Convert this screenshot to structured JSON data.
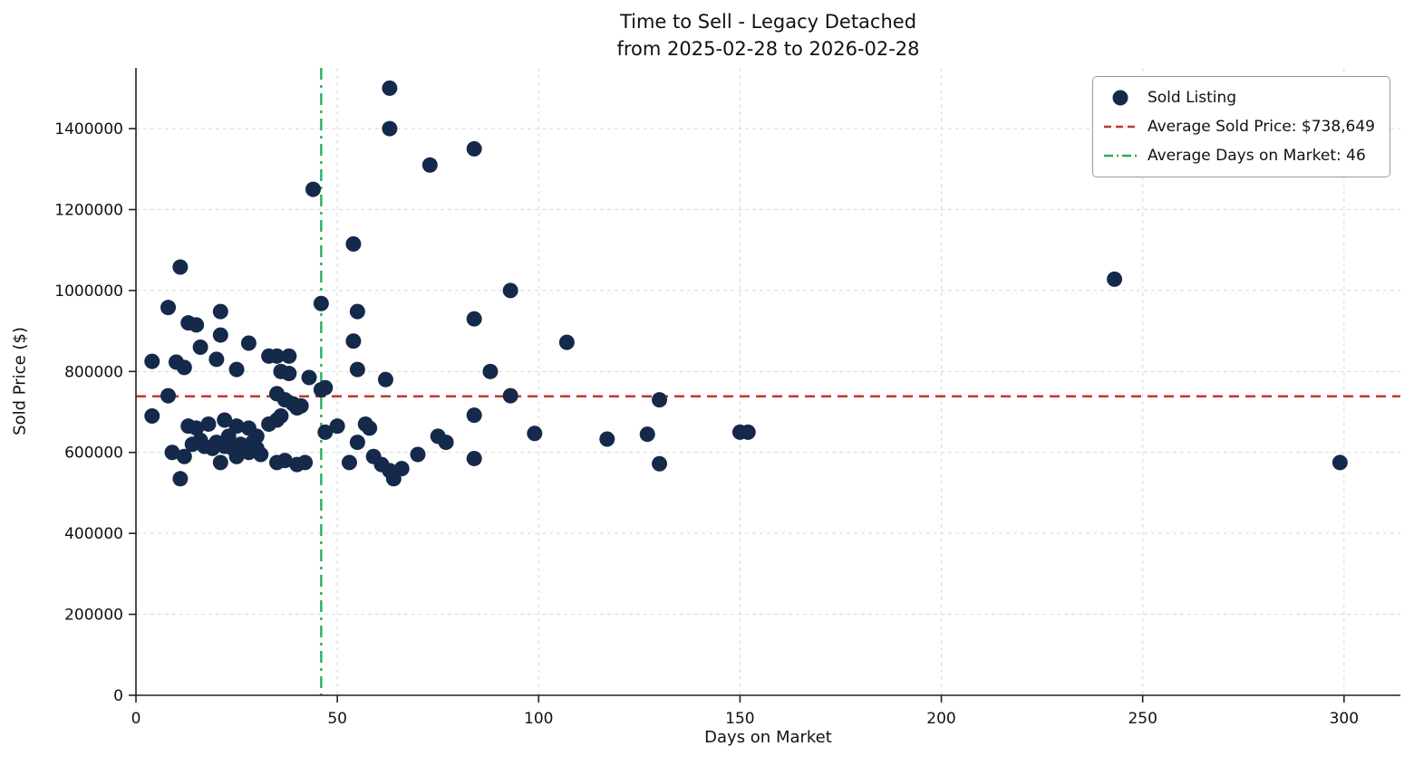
{
  "chart_data": {
    "type": "scatter",
    "title_lines": [
      "Time to Sell - Legacy Detached",
      "from 2025-02-28 to 2026-02-28"
    ],
    "xlabel": "Days on Market",
    "ylabel": "Sold Price ($)",
    "xlim": [
      0,
      314
    ],
    "ylim": [
      0,
      1550000
    ],
    "xticks": [
      0,
      50,
      100,
      150,
      200,
      250,
      300
    ],
    "yticks": [
      0,
      200000,
      400000,
      600000,
      800000,
      1000000,
      1200000,
      1400000
    ],
    "grid": true,
    "legend_position": "upper right",
    "average_sold_price": 738649,
    "average_days_on_market": 46,
    "legend": [
      {
        "label": "Sold Listing",
        "marker": "dot"
      },
      {
        "label": "Average Sold Price: $738,649",
        "marker": "dashed-line"
      },
      {
        "label": "Average Days on Market: 46",
        "marker": "dashdot-line"
      }
    ],
    "colors": {
      "point": "#15294b",
      "avg_price_line": "#c0392b",
      "avg_days_line": "#27ae60",
      "grid": "#d8d8d8",
      "axis": "#222222",
      "text": "#111111"
    },
    "series": [
      {
        "name": "Sold Listing",
        "points": [
          [
            4,
            825000
          ],
          [
            4,
            690000
          ],
          [
            8,
            958000
          ],
          [
            8,
            740000
          ],
          [
            9,
            600000
          ],
          [
            10,
            823000
          ],
          [
            11,
            1058000
          ],
          [
            11,
            535000
          ],
          [
            12,
            810000
          ],
          [
            12,
            590000
          ],
          [
            13,
            920000
          ],
          [
            13,
            665000
          ],
          [
            14,
            620000
          ],
          [
            15,
            915000
          ],
          [
            15,
            660000
          ],
          [
            16,
            860000
          ],
          [
            16,
            630000
          ],
          [
            17,
            615000
          ],
          [
            18,
            670000
          ],
          [
            19,
            610000
          ],
          [
            20,
            830000
          ],
          [
            20,
            625000
          ],
          [
            21,
            948000
          ],
          [
            21,
            890000
          ],
          [
            21,
            575000
          ],
          [
            22,
            680000
          ],
          [
            22,
            615000
          ],
          [
            23,
            640000
          ],
          [
            24,
            610000
          ],
          [
            25,
            805000
          ],
          [
            25,
            665000
          ],
          [
            25,
            590000
          ],
          [
            26,
            620000
          ],
          [
            28,
            870000
          ],
          [
            28,
            660000
          ],
          [
            28,
            600000
          ],
          [
            29,
            625000
          ],
          [
            30,
            640000
          ],
          [
            30,
            610000
          ],
          [
            31,
            595000
          ],
          [
            33,
            838000
          ],
          [
            33,
            670000
          ],
          [
            35,
            838000
          ],
          [
            35,
            745000
          ],
          [
            35,
            680000
          ],
          [
            35,
            575000
          ],
          [
            36,
            800000
          ],
          [
            36,
            690000
          ],
          [
            37,
            730000
          ],
          [
            37,
            580000
          ],
          [
            38,
            838000
          ],
          [
            38,
            795000
          ],
          [
            39,
            720000
          ],
          [
            40,
            710000
          ],
          [
            40,
            570000
          ],
          [
            41,
            715000
          ],
          [
            42,
            575000
          ],
          [
            43,
            785000
          ],
          [
            44,
            1250000
          ],
          [
            46,
            968000
          ],
          [
            46,
            755000
          ],
          [
            47,
            760000
          ],
          [
            47,
            650000
          ],
          [
            50,
            665000
          ],
          [
            53,
            575000
          ],
          [
            54,
            1115000
          ],
          [
            54,
            875000
          ],
          [
            55,
            948000
          ],
          [
            55,
            805000
          ],
          [
            55,
            625000
          ],
          [
            57,
            670000
          ],
          [
            58,
            660000
          ],
          [
            59,
            590000
          ],
          [
            61,
            570000
          ],
          [
            62,
            780000
          ],
          [
            63,
            1500000
          ],
          [
            63,
            1400000
          ],
          [
            63,
            555000
          ],
          [
            64,
            535000
          ],
          [
            66,
            560000
          ],
          [
            70,
            595000
          ],
          [
            73,
            1310000
          ],
          [
            75,
            640000
          ],
          [
            77,
            625000
          ],
          [
            84,
            1350000
          ],
          [
            84,
            930000
          ],
          [
            84,
            692000
          ],
          [
            84,
            585000
          ],
          [
            88,
            800000
          ],
          [
            93,
            1000000
          ],
          [
            93,
            740000
          ],
          [
            99,
            647000
          ],
          [
            107,
            872000
          ],
          [
            117,
            633000
          ],
          [
            127,
            645000
          ],
          [
            130,
            730000
          ],
          [
            130,
            572000
          ],
          [
            150,
            650000
          ],
          [
            152,
            650000
          ],
          [
            243,
            1028000
          ],
          [
            299,
            575000
          ]
        ]
      }
    ]
  }
}
